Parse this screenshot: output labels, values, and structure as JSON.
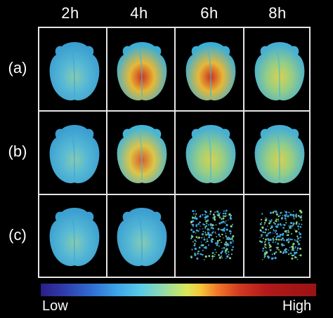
{
  "figure": {
    "columns": [
      "2h",
      "4h",
      "6h",
      "8h"
    ],
    "rows": [
      "(a)",
      "(b)",
      "(c)"
    ],
    "colorbar": {
      "low_label": "Low",
      "high_label": "High"
    },
    "intensity_levels": [
      [
        0.35,
        0.85,
        0.95,
        0.45
      ],
      [
        0.3,
        0.7,
        0.45,
        0.45
      ],
      [
        0.25,
        0.3,
        0.3,
        0.3
      ]
    ]
  }
}
